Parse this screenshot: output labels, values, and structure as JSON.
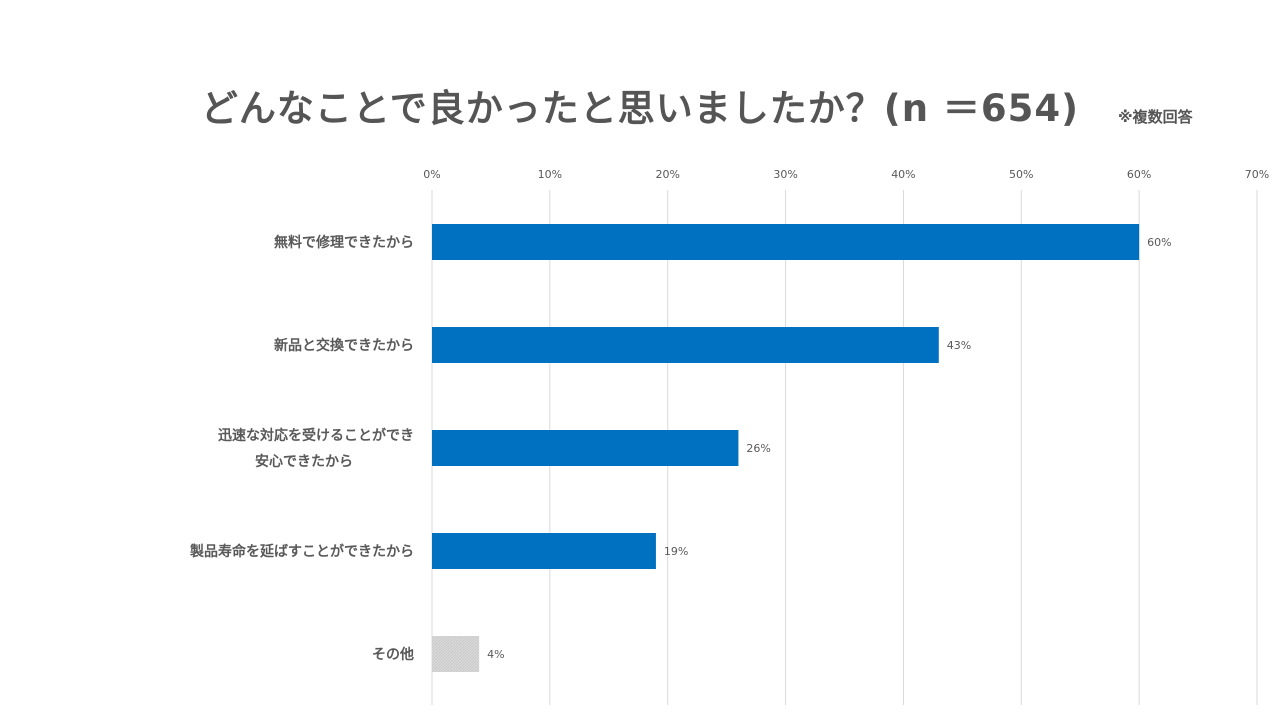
{
  "chart_data": {
    "type": "bar",
    "orientation": "horizontal",
    "title": "どんなことで良かったと思いましたか？(n ＝654)",
    "note": "※複数回答",
    "categories": [
      [
        "無料で修理できたから"
      ],
      [
        "新品と交換できたから"
      ],
      [
        "迅速な対応を受けることができ",
        "安心できたから"
      ],
      [
        "製品寿命を延ばすことができたから"
      ],
      [
        "その他"
      ]
    ],
    "values": [
      60,
      43,
      26,
      19,
      4
    ],
    "value_labels": [
      "60%",
      "43%",
      "26%",
      "19%",
      "4%"
    ],
    "bar_colors": [
      "#0070c0",
      "#0070c0",
      "#0070c0",
      "#0070c0",
      "#d9d9d9"
    ],
    "xlim": [
      0,
      70
    ],
    "xticks": [
      "0%",
      "10%",
      "20%",
      "30%",
      "40%",
      "50%",
      "60%",
      "70%"
    ],
    "xtick_values": [
      0,
      10,
      20,
      30,
      40,
      50,
      60,
      70
    ],
    "x_axis_position": "top",
    "grid": true
  }
}
